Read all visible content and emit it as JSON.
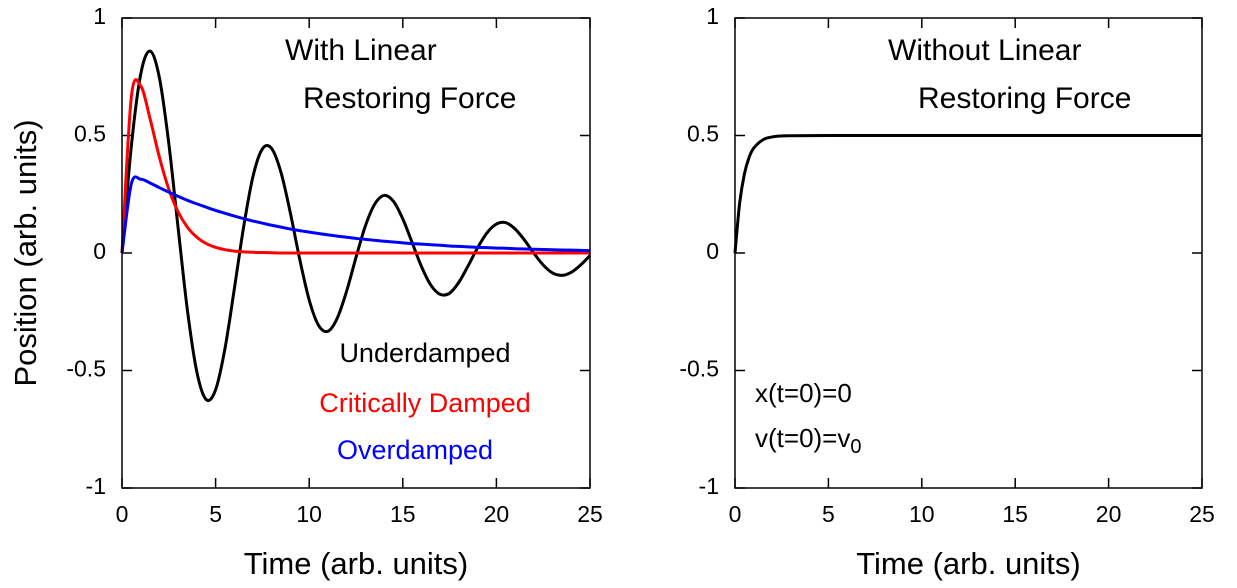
{
  "chart_data": [
    {
      "type": "line",
      "xlabel": "Time (arb. units)",
      "ylabel": "Position (arb. units)",
      "annotations": [
        "With Linear",
        "Restoring Force"
      ],
      "x": [
        0,
        0.5,
        1,
        1.5,
        2,
        2.5,
        3,
        3.5,
        4,
        4.5,
        5,
        5.5,
        6,
        6.5,
        7,
        7.5,
        8,
        8.5,
        9,
        9.5,
        10,
        10.5,
        11,
        11.5,
        12,
        12.5,
        13,
        13.5,
        14,
        14.5,
        15,
        15.5,
        16,
        16.5,
        17,
        17.5,
        18,
        18.5,
        19,
        19.5,
        20,
        20.5,
        21,
        21.5,
        22,
        22.5,
        23,
        23.5,
        24,
        24.5,
        25
      ],
      "series": [
        {
          "name": "Underdamped",
          "color": "#000000",
          "values": [
            0,
            0.456,
            0.761,
            0.859,
            0.745,
            0.466,
            0.105,
            -0.247,
            -0.507,
            -0.624,
            -0.582,
            -0.407,
            -0.153,
            0.112,
            0.327,
            0.443,
            0.444,
            0.341,
            0.168,
            -0.029,
            -0.2,
            -0.308,
            -0.333,
            -0.277,
            -0.162,
            -0.019,
            0.115,
            0.208,
            0.245,
            0.22,
            0.145,
            0.044,
            -0.058,
            -0.137,
            -0.176,
            -0.171,
            -0.124,
            -0.053,
            0.023,
            0.086,
            0.123,
            0.129,
            0.102,
            0.055,
            -0.001,
            -0.051,
            -0.085,
            -0.095,
            -0.082,
            -0.051,
            -0.011
          ]
        },
        {
          "name": "Critically Damped",
          "color": "#ff0000",
          "values": [
            0,
            0.664,
            0.711,
            0.571,
            0.407,
            0.272,
            0.175,
            0.109,
            0.067,
            0.04,
            0.024,
            0.014,
            0.008,
            0.005,
            0.003,
            0.002,
            0.001,
            0,
            0,
            0,
            0,
            0,
            0,
            0,
            0,
            0,
            0,
            0,
            0,
            0,
            0,
            0,
            0,
            0,
            0,
            0,
            0,
            0,
            0,
            0,
            0,
            0,
            0,
            0,
            0,
            0,
            0,
            0,
            0,
            0,
            0
          ]
        },
        {
          "name": "Overdamped",
          "color": "#0000ff",
          "values": [
            0,
            0.295,
            0.314,
            0.298,
            0.278,
            0.259,
            0.241,
            0.224,
            0.209,
            0.195,
            0.181,
            0.169,
            0.157,
            0.146,
            0.136,
            0.127,
            0.118,
            0.11,
            0.102,
            0.095,
            0.089,
            0.083,
            0.077,
            0.072,
            0.067,
            0.062,
            0.058,
            0.054,
            0.05,
            0.047,
            0.043,
            0.04,
            0.038,
            0.035,
            0.033,
            0.03,
            0.028,
            0.026,
            0.024,
            0.023,
            0.021,
            0.02,
            0.018,
            0.017,
            0.016,
            0.015,
            0.014,
            0.013,
            0.012,
            0.011,
            0.01
          ]
        }
      ],
      "xlim": [
        0,
        25
      ],
      "xticks": [
        0,
        5,
        10,
        15,
        20,
        25
      ],
      "ylim": [
        -1,
        1
      ],
      "yticks": [
        -1,
        -0.5,
        0,
        0.5,
        1
      ],
      "grid": false
    },
    {
      "type": "line",
      "xlabel": "Time (arb. units)",
      "annotations": [
        "Without Linear",
        "Restoring Force"
      ],
      "conditions": [
        {
          "text": "x(t=0)=0"
        },
        {
          "text": "v(t=0)=v",
          "subscript": "0"
        }
      ],
      "x": [
        0,
        0.25,
        0.5,
        0.75,
        1,
        1.5,
        2,
        2.5,
        3,
        5,
        10,
        15,
        20,
        25
      ],
      "series": [
        {
          "color": "#000000",
          "values": [
            0,
            0.213,
            0.335,
            0.406,
            0.446,
            0.482,
            0.494,
            0.498,
            0.499,
            0.5,
            0.5,
            0.5,
            0.5,
            0.5
          ]
        }
      ],
      "xlim": [
        0,
        25
      ],
      "xticks": [
        0,
        5,
        10,
        15,
        20,
        25
      ],
      "ylim": [
        -1,
        1
      ],
      "yticks": [
        -1,
        -0.5,
        0,
        0.5,
        1
      ],
      "grid": false
    }
  ]
}
